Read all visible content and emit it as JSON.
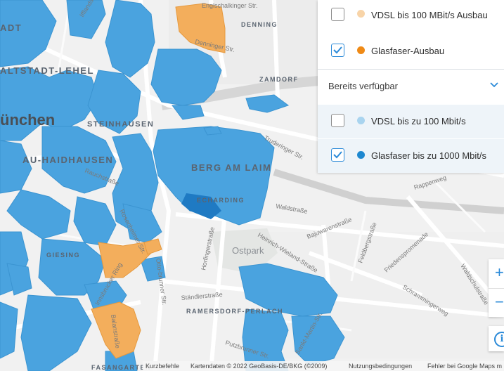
{
  "legend": {
    "items_planned": [
      {
        "label": "VDSL bis 100 MBit/s Ausbau",
        "checked": false,
        "dot_color": "#f8d4a8"
      },
      {
        "label": "Glasfaser-Ausbau",
        "checked": true,
        "dot_color": "#ef8a16"
      }
    ],
    "section_title": "Bereits verfügbar",
    "items_available": [
      {
        "label": "VDSL bis zu 100 Mbit/s",
        "checked": false,
        "dot_color": "#a9d4ef"
      },
      {
        "label": "Glasfaser bis zu 1000 Mbit/s",
        "checked": true,
        "dot_color": "#1e88d0"
      }
    ]
  },
  "map": {
    "city_label": "ünchen",
    "districts": [
      "ADT",
      "ALTSTADT-LEHEL",
      "STEINHAUSEN",
      "AU-HAIDHAUSEN",
      "BERG AM LAIM",
      "DENNING",
      "ZAMDORF",
      "ECHARDING",
      "GIESING",
      "RAMERSDORF-PERLACH",
      "FASANGARTEN"
    ],
    "streets": [
      "Englschalkinger Str.",
      "Denninger Str.",
      "Truderinger Str.",
      "Rappenweg",
      "Waldstraße",
      "Bajuwarenstraße",
      "Heinrich-Wieland-Straße",
      "Feldbergstraße",
      "Friedenspromenade",
      "Schrammingerweg",
      "Waldschulstraße",
      "Horfingerstraße",
      "Ständlerstraße",
      "Putzbrunner Str.",
      "Otto-brunner Str.",
      "Balanstraße",
      "Rosenheimer Str.",
      "Innsbrucker Ring",
      "Ifflandstraße",
      "Rauchstraße",
      "Sankt-Martin-Str."
    ],
    "park_label": "Ostpark",
    "colors": {
      "glasfaser": "#4aa3df",
      "ausbau": "#f3ae5c",
      "background": "#f1f1f1",
      "road": "#ffffff"
    }
  },
  "controls": {
    "zoom_in": "+",
    "zoom_out": "−",
    "info": "i"
  },
  "attribution": {
    "kurz": "Kurzbefehle",
    "daten": "Kartendaten © 2022 GeoBasis-DE/BKG (©2009)",
    "nutzung": "Nutzungsbedingungen",
    "fehler": "Fehler bei Google Maps m"
  }
}
